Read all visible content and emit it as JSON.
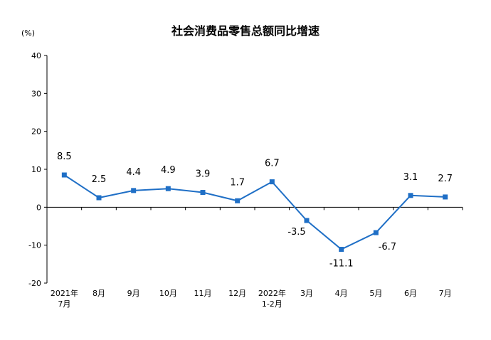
{
  "chart_data": {
    "type": "line",
    "title": "社会消费品零售总额同比增速",
    "y_unit": "(%)",
    "ylim": [
      -20,
      40
    ],
    "yticks": [
      -20,
      -10,
      0,
      10,
      20,
      30,
      40
    ],
    "categories": [
      [
        "2021年",
        "7月"
      ],
      [
        "8月"
      ],
      [
        "9月"
      ],
      [
        "10月"
      ],
      [
        "11月"
      ],
      [
        "12月"
      ],
      [
        "2022年",
        "1-2月"
      ],
      [
        "3月"
      ],
      [
        "4月"
      ],
      [
        "5月"
      ],
      [
        "6月"
      ],
      [
        "7月"
      ]
    ],
    "series": [
      {
        "values": [
          8.5,
          2.5,
          4.4,
          4.9,
          3.9,
          1.7,
          6.7,
          -3.5,
          -11.1,
          -6.7,
          3.1,
          2.7
        ],
        "labels": [
          "8.5",
          "2.5",
          "4.4",
          "4.9",
          "3.9",
          "1.7",
          "6.7",
          "-3.5",
          "-11.1",
          "-6.7",
          "3.1",
          "2.7"
        ],
        "color": "#1f6fc6"
      }
    ],
    "grid": false,
    "legend": "none"
  }
}
